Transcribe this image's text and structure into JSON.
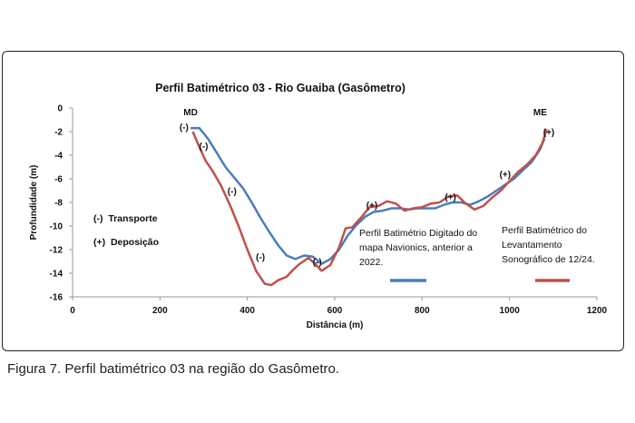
{
  "caption": "Figura 7. Perfil batimétrico 03 na região do Gasômetro.",
  "chart_data": {
    "type": "line",
    "title": "Perfil Batimétrico  03 - Rio Guaiba (Gasômetro)",
    "xlabel": "Distância (m)",
    "ylabel": "Profundidade (m)",
    "xlim": [
      0,
      1200
    ],
    "ylim": [
      -16,
      0
    ],
    "xticks": [
      0,
      200,
      400,
      600,
      800,
      1000,
      1200
    ],
    "yticks": [
      0,
      -2,
      -4,
      -6,
      -8,
      -10,
      -12,
      -14,
      -16
    ],
    "grid": false,
    "series": [
      {
        "name": "Perfil Batimétrio Digitado do mapa Navionics, anterior a 2022.",
        "color": "#4a7ebb",
        "x": [
          270,
          290,
          310,
          330,
          350,
          370,
          390,
          410,
          430,
          450,
          470,
          490,
          510,
          530,
          550,
          570,
          590,
          610,
          630,
          650,
          670,
          690,
          710,
          730,
          750,
          770,
          790,
          810,
          830,
          850,
          870,
          890,
          910,
          930,
          950,
          970,
          990,
          1010,
          1030,
          1050,
          1070,
          1080
        ],
        "y": [
          -1.7,
          -1.7,
          -2.6,
          -3.8,
          -5.0,
          -5.9,
          -6.8,
          -8.0,
          -9.3,
          -10.5,
          -11.6,
          -12.5,
          -12.8,
          -12.5,
          -12.6,
          -13.2,
          -12.8,
          -12.0,
          -10.8,
          -9.9,
          -9.2,
          -8.8,
          -8.7,
          -8.5,
          -8.5,
          -8.6,
          -8.5,
          -8.5,
          -8.5,
          -8.2,
          -8.0,
          -8.0,
          -8.2,
          -7.9,
          -7.5,
          -7.0,
          -6.5,
          -6.0,
          -5.3,
          -4.6,
          -3.5,
          -2.6
        ]
      },
      {
        "name": "Perfil Batimétrico do Levantamento Sonográfico de 12/24.",
        "color": "#c0504d",
        "x": [
          275,
          290,
          305,
          320,
          340,
          360,
          380,
          400,
          420,
          440,
          455,
          470,
          490,
          505,
          520,
          540,
          555,
          570,
          590,
          610,
          625,
          640,
          660,
          680,
          700,
          720,
          740,
          760,
          780,
          800,
          820,
          840,
          860,
          880,
          900,
          920,
          940,
          960,
          980,
          1000,
          1020,
          1040,
          1060,
          1075,
          1085
        ],
        "y": [
          -2.0,
          -3.3,
          -4.5,
          -5.3,
          -6.6,
          -8.2,
          -10.0,
          -12.0,
          -13.8,
          -14.9,
          -15.0,
          -14.6,
          -14.3,
          -13.7,
          -13.2,
          -12.7,
          -13.2,
          -13.8,
          -13.3,
          -11.8,
          -10.2,
          -10.1,
          -9.3,
          -8.4,
          -8.3,
          -7.9,
          -8.1,
          -8.7,
          -8.5,
          -8.4,
          -8.1,
          -8.0,
          -7.5,
          -7.4,
          -8.1,
          -8.6,
          -8.3,
          -7.6,
          -7.0,
          -6.2,
          -5.4,
          -4.8,
          -4.0,
          -3.0,
          -1.8
        ]
      }
    ],
    "annotations": [
      {
        "text": "MD",
        "x": 270,
        "y": -0.6
      },
      {
        "text": "ME",
        "x": 1070,
        "y": -0.6
      },
      {
        "text": "(-)",
        "x": 255,
        "y": -1.9
      },
      {
        "text": "(-)",
        "x": 300,
        "y": -3.5
      },
      {
        "text": "(-)",
        "x": 365,
        "y": -7.3
      },
      {
        "text": "(-)",
        "x": 430,
        "y": -12.9
      },
      {
        "text": "(-)",
        "x": 560,
        "y": -13.3
      },
      {
        "text": "(+)",
        "x": 685,
        "y": -8.5
      },
      {
        "text": "(+)",
        "x": 865,
        "y": -7.8
      },
      {
        "text": "(+)",
        "x": 990,
        "y": -5.9
      },
      {
        "text": "(+)",
        "x": 1090,
        "y": -2.3
      }
    ],
    "side_labels": [
      "(-)  Transporte",
      "(+)  Deposição"
    ],
    "legend_texts": [
      [
        "Perfil Batimétrio Digitado do",
        "mapa Navionics, anterior a",
        "2022."
      ],
      [
        "Perfil Batimétrico do",
        "Levantamento",
        "Sonográfico de 12/24."
      ]
    ]
  }
}
